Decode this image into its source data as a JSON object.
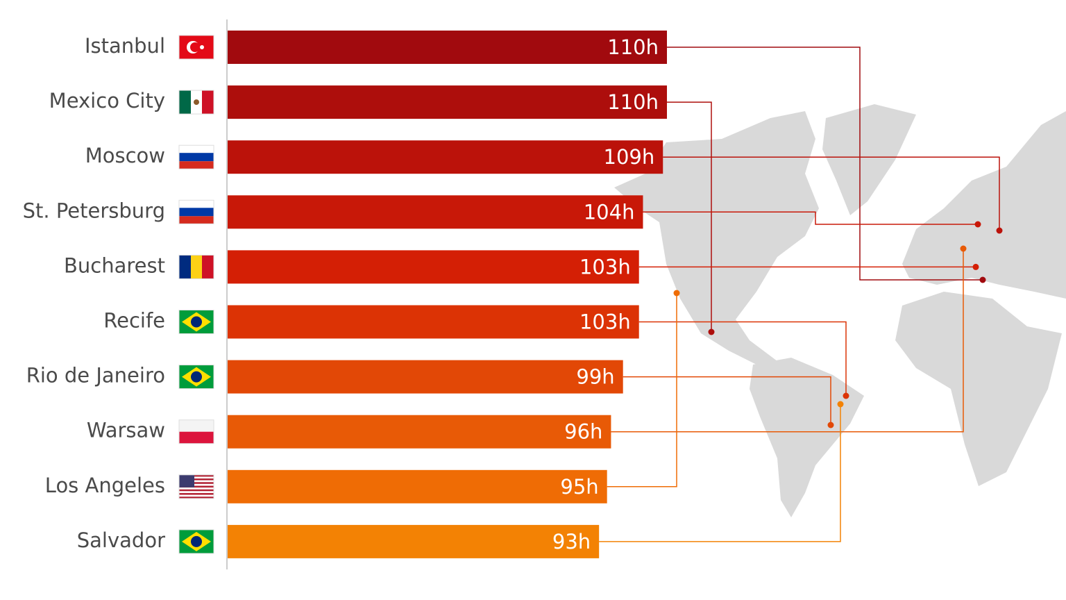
{
  "chart_data": {
    "type": "bar",
    "categories": [
      "Istanbul",
      "Mexico City",
      "Moscow",
      "St. Petersburg",
      "Bucharest",
      "Recife",
      "Rio de Janeiro",
      "Warsaw",
      "Los Angeles",
      "Salvador"
    ],
    "values": [
      110,
      110,
      109,
      104,
      103,
      103,
      99,
      96,
      95,
      93
    ],
    "value_labels": [
      "110h",
      "110h",
      "109h",
      "104h",
      "103h",
      "103h",
      "99h",
      "96h",
      "95h",
      "93h"
    ],
    "colors": [
      "#a10a0e",
      "#ad0e0c",
      "#bb120a",
      "#c81808",
      "#d41f05",
      "#dc3305",
      "#e24806",
      "#e85a06",
      "#ef6c05",
      "#f38204"
    ],
    "xlim": [
      0,
      110
    ]
  }
}
